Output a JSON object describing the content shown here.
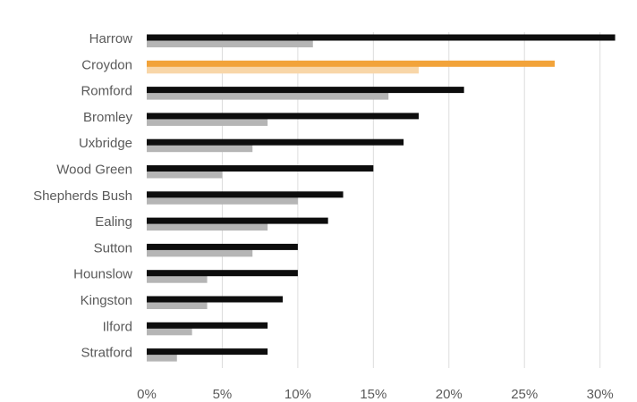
{
  "chart_data": {
    "type": "bar",
    "orientation": "horizontal",
    "categories": [
      "Harrow",
      "Croydon",
      "Romford",
      "Bromley",
      "Uxbridge",
      "Wood Green",
      "Shepherds Bush",
      "Ealing",
      "Sutton",
      "Hounslow",
      "Kingston",
      "Ilford",
      "Stratford"
    ],
    "series": [
      {
        "values": [
          31,
          27,
          21,
          18,
          17,
          15,
          13,
          12,
          10,
          10,
          9,
          8,
          8
        ]
      },
      {
        "values": [
          11,
          18,
          16,
          8,
          7,
          5,
          10,
          8,
          7,
          4,
          4,
          3,
          2
        ]
      }
    ],
    "x_ticks": [
      "0%",
      "5%",
      "10%",
      "15%",
      "20%",
      "25%",
      "30%"
    ],
    "xlim": [
      0,
      31.5
    ],
    "grid": "vertical",
    "legend": "none",
    "highlight_category": "Croydon",
    "colors": {
      "series_primary": "#0d0d0d",
      "series_secondary": "#b5b5b5",
      "highlight_primary": "#f2a33a",
      "highlight_secondary": "#f8d6a8",
      "grid": "#dcdcdc",
      "text": "#5a5a5a"
    }
  }
}
